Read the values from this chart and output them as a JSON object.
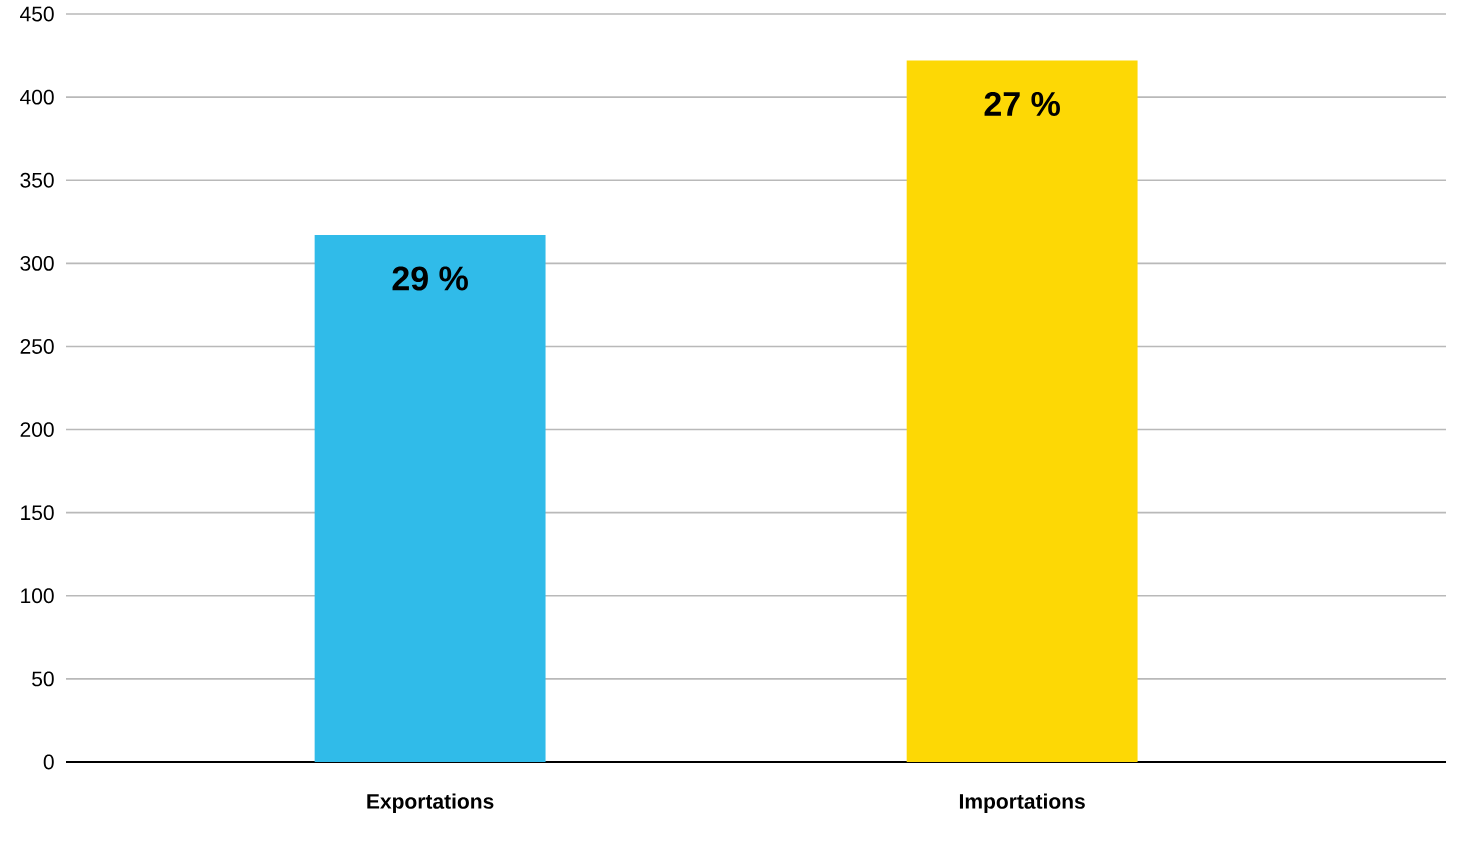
{
  "chart_data": {
    "type": "bar",
    "categories": [
      "Exportations",
      "Importations"
    ],
    "values": [
      317,
      422
    ],
    "colors": [
      "#30bbe9",
      "#fdd805"
    ],
    "annotations": [
      {
        "text": "29 %",
        "x": "Exportations",
        "y": 317
      },
      {
        "text": "27 %",
        "x": "Importations",
        "y": 422
      }
    ],
    "ylim": [
      0,
      450
    ],
    "yticks": [
      0,
      50,
      100,
      150,
      200,
      250,
      300,
      350,
      400,
      450
    ],
    "grid": "y"
  }
}
